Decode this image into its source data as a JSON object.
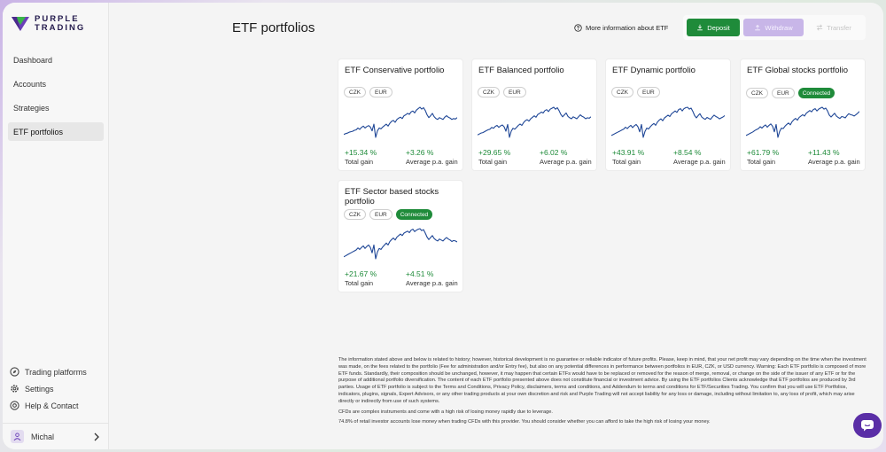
{
  "brand": {
    "line1": "PURPLE",
    "line2": "TRADING"
  },
  "sidebar": {
    "items": [
      {
        "label": "Dashboard"
      },
      {
        "label": "Accounts"
      },
      {
        "label": "Strategies"
      },
      {
        "label": "ETF portfolios"
      }
    ],
    "bottom_items": [
      {
        "label": "Trading platforms",
        "icon": "compass-icon"
      },
      {
        "label": "Settings",
        "icon": "gear-icon"
      },
      {
        "label": "Help & Contact",
        "icon": "lifebuoy-icon"
      }
    ],
    "user": {
      "name": "Michal"
    }
  },
  "header": {
    "title": "ETF portfolios",
    "info_link": "More information about ETF",
    "deposit_label": "Deposit",
    "withdraw_label": "Withdraw",
    "transfer_label": "Transfer"
  },
  "cards": [
    {
      "title": "ETF Conservative portfolio",
      "tags": [
        "CZK",
        "EUR"
      ],
      "connected": "",
      "total_gain": "+15.34 %",
      "total_label": "Total gain",
      "avg_gain": "+3.26 %",
      "avg_label": "Average p.a. gain",
      "series": [
        38,
        40,
        41,
        43,
        44,
        45,
        47,
        48,
        52,
        49,
        53,
        56,
        52,
        55,
        57,
        54,
        46,
        60,
        32,
        46,
        52,
        50,
        54,
        57,
        60,
        56,
        62,
        66,
        68,
        64,
        70,
        73,
        75,
        72,
        78,
        80,
        83,
        81,
        86,
        88,
        84,
        90,
        93,
        96,
        92,
        95,
        89,
        80,
        74,
        78,
        83,
        76,
        72,
        70,
        74,
        72,
        70,
        75,
        78,
        75,
        73,
        70,
        72,
        71,
        74
      ]
    },
    {
      "title": "ETF Balanced portfolio",
      "tags": [
        "CZK",
        "EUR"
      ],
      "connected": "",
      "total_gain": "+29.65 %",
      "total_label": "Total gain",
      "avg_gain": "+6.02 %",
      "avg_label": "Average p.a. gain",
      "series": [
        40,
        42,
        44,
        45,
        47,
        49,
        51,
        52,
        56,
        54,
        58,
        60,
        56,
        59,
        61,
        57,
        48,
        62,
        35,
        48,
        54,
        52,
        56,
        60,
        63,
        60,
        66,
        70,
        72,
        69,
        74,
        77,
        80,
        77,
        83,
        85,
        88,
        86,
        91,
        93,
        89,
        94,
        96,
        98,
        94,
        97,
        91,
        83,
        78,
        82,
        86,
        79,
        76,
        74,
        78,
        76,
        74,
        78,
        82,
        79,
        77,
        74,
        76,
        75,
        78
      ]
    },
    {
      "title": "ETF Dynamic portfolio",
      "tags": [
        "CZK",
        "EUR"
      ],
      "connected": "",
      "total_gain": "+43.91 %",
      "total_label": "Total gain",
      "avg_gain": "+8.54 %",
      "avg_label": "Average p.a. gain",
      "series": [
        38,
        40,
        42,
        44,
        46,
        48,
        50,
        52,
        56,
        53,
        57,
        60,
        55,
        59,
        62,
        57,
        46,
        62,
        34,
        47,
        54,
        52,
        57,
        61,
        64,
        60,
        67,
        71,
        74,
        70,
        76,
        79,
        82,
        79,
        85,
        88,
        91,
        88,
        94,
        96,
        91,
        96,
        98,
        99,
        95,
        97,
        90,
        81,
        76,
        81,
        85,
        78,
        75,
        73,
        77,
        75,
        73,
        78,
        82,
        79,
        77,
        74,
        76,
        78,
        81
      ]
    },
    {
      "title": "ETF Global stocks portfolio",
      "tags": [
        "CZK",
        "EUR"
      ],
      "connected": "Connected",
      "total_gain": "+61.79 %",
      "total_label": "Total gain",
      "avg_gain": "+11.43 %",
      "avg_label": "Average p.a. gain",
      "series": [
        36,
        38,
        40,
        42,
        44,
        47,
        49,
        51,
        55,
        52,
        56,
        59,
        54,
        58,
        61,
        56,
        44,
        60,
        32,
        45,
        52,
        51,
        56,
        60,
        63,
        59,
        66,
        70,
        73,
        69,
        75,
        78,
        81,
        78,
        84,
        87,
        90,
        87,
        92,
        94,
        89,
        93,
        95,
        97,
        93,
        95,
        89,
        80,
        76,
        80,
        84,
        78,
        75,
        73,
        77,
        76,
        74,
        79,
        83,
        81,
        80,
        78,
        81,
        84,
        88
      ]
    },
    {
      "title": "ETF Sector based stocks portfolio",
      "tags": [
        "CZK",
        "EUR"
      ],
      "connected": "Connected",
      "total_gain": "+21.67 %",
      "total_label": "Total gain",
      "avg_gain": "+4.51 %",
      "avg_label": "Average p.a. gain",
      "series": [
        40,
        42,
        44,
        46,
        48,
        50,
        52,
        54,
        58,
        55,
        59,
        62,
        57,
        61,
        64,
        59,
        48,
        64,
        36,
        50,
        57,
        55,
        60,
        64,
        68,
        64,
        71,
        75,
        78,
        74,
        80,
        83,
        86,
        83,
        88,
        90,
        92,
        89,
        94,
        96,
        91,
        94,
        96,
        97,
        93,
        95,
        88,
        80,
        75,
        79,
        83,
        77,
        74,
        72,
        76,
        74,
        72,
        76,
        79,
        76,
        74,
        71,
        73,
        72,
        70
      ]
    }
  ],
  "disclaimer": {
    "p1": "The information stated above and below is related to history; however, historical development is no guarantee or reliable indicator of future profits. Please, keep in mind, that your net profit may vary depending on the time when the investment was made, on the fees related to the portfolio (Fee for administration and/or Entry fee), but also on any potential differences in performance between portfolios in EUR, CZK, or USD currency. Warning: Each ETF portfolio is composed of more ETF funds. Standardly, their composition should be unchanged, however, it may happen that certain ETFs would have to be replaced or removed for the reason of merge, removal, or change on the side of the issuer of any ETF or for the purpose of additional portfolio diversification. The content of each ETF portfolio presented above does not constitute financial or investment advice. By using the ETF portfolios Clients acknowledge that ETF portfolios are produced by 3rd parties. Usage of ETF portfolio is subject to the Terms and Conditions, Privacy Policy, disclaimers, terms and conditions, and Addendum to terms and conditions for ETF/Securities Trading. You confirm that you will use ETF Portfolios, indicators, plugins, signals, Expert Advisors, or any other trading products at your own discretion and risk and Purple Trading will not accept liability for any loss or damage, including without limitation to, any loss of profit, which may arise directly or indirectly from use of such systems.",
    "p2": "CFDs are complex instruments and come with a high risk of losing money rapidly due to leverage.",
    "p3": "74.8% of retail investor accounts lose money when trading CFDs with this provider. You should consider whether you can afford to take the high risk of losing your money."
  }
}
